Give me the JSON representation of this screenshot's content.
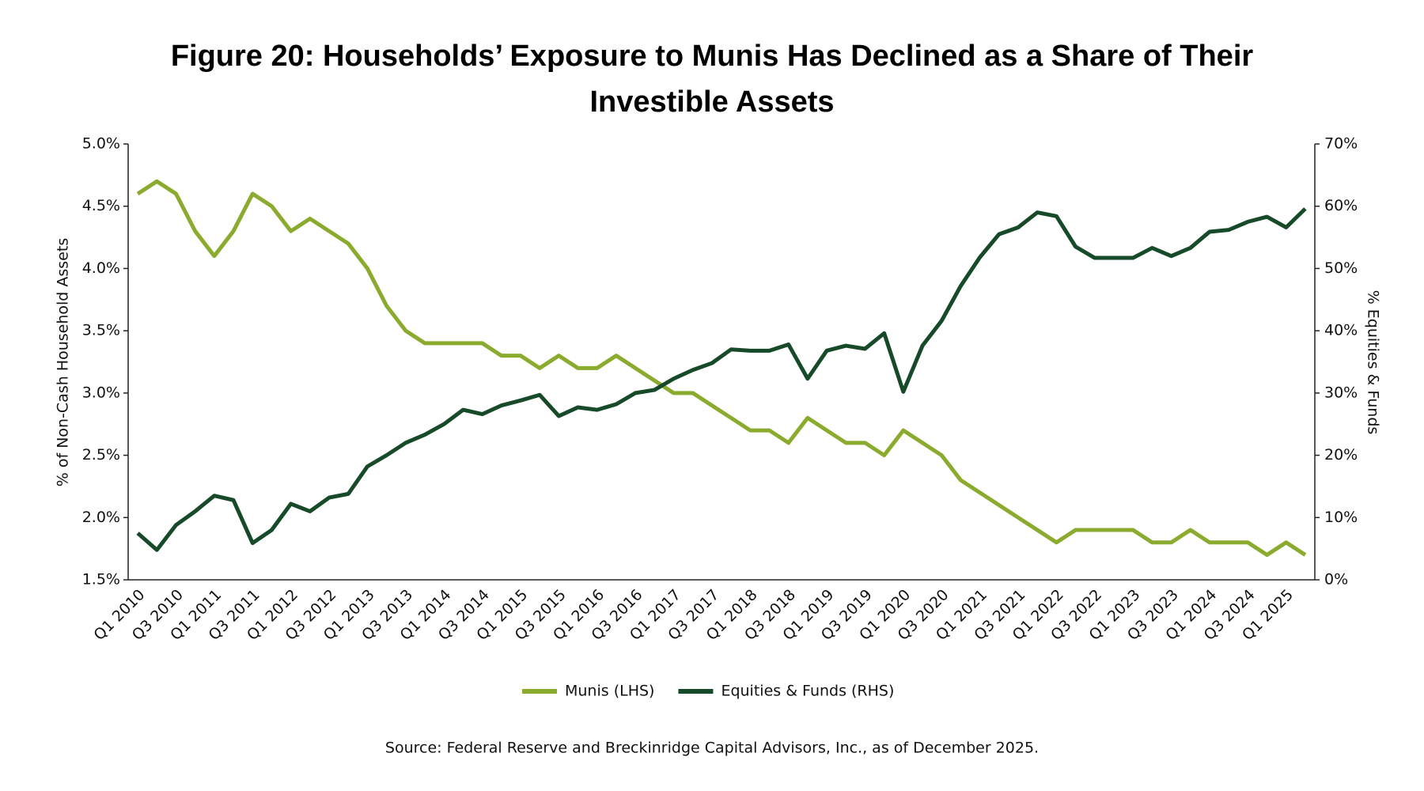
{
  "chart_data": {
    "type": "line",
    "title": "Figure 20: Households’ Exposure to Munis Has Declined as a Share of Their Investible Assets",
    "y_label": "% of Non-Cash Household Assets",
    "y2_label": "% Equities & Funds",
    "source": "Source: Federal Reserve and Breckinridge Capital Advisors, Inc., as of December 2025.",
    "categories": [
      "Q1 2010",
      null,
      "Q3 2010",
      null,
      "Q1 2011",
      null,
      "Q3 2011",
      null,
      "Q1 2012",
      null,
      "Q3 2012",
      null,
      "Q1 2013",
      null,
      "Q3 2013",
      null,
      "Q1 2014",
      null,
      "Q3 2014",
      null,
      "Q1 2015",
      null,
      "Q3 2015",
      null,
      "Q1 2016",
      null,
      "Q3 2016",
      null,
      "Q1 2017",
      null,
      "Q3 2017",
      null,
      "Q1 2018",
      null,
      "Q3 2018",
      null,
      "Q1 2019",
      null,
      "Q3 2019",
      null,
      "Q1 2020",
      null,
      "Q3 2020",
      null,
      "Q1 2021",
      null,
      "Q3 2021",
      null,
      "Q1 2022",
      null,
      "Q3 2022",
      null,
      "Q1 2023",
      null,
      "Q3 2023",
      null,
      "Q1 2024",
      null,
      "Q3 2024",
      null,
      "Q1 2025",
      null
    ],
    "series": [
      {
        "name": "Munis (LHS)",
        "color": "#8aab2e",
        "axis": "y",
        "values": [
          4.6,
          4.7,
          4.6,
          4.3,
          4.1,
          4.3,
          4.6,
          4.5,
          4.3,
          4.4,
          4.3,
          4.2,
          4.0,
          3.7,
          3.5,
          3.4,
          3.4,
          3.4,
          3.4,
          3.3,
          3.3,
          3.2,
          3.3,
          3.2,
          3.2,
          3.3,
          3.2,
          3.1,
          3.0,
          3.0,
          2.9,
          2.8,
          2.7,
          2.7,
          2.6,
          2.8,
          2.7,
          2.6,
          2.6,
          2.5,
          2.7,
          2.6,
          2.5,
          2.3,
          2.2,
          2.1,
          2.0,
          1.9,
          1.8,
          1.9,
          1.9,
          1.9,
          1.9,
          1.8,
          1.8,
          1.9,
          1.8,
          1.8,
          1.8,
          1.7,
          1.8,
          1.7
        ]
      },
      {
        "name": "Equities & Funds (RHS)",
        "color": "#174a29",
        "axis": "y2",
        "values": [
          7.5,
          4.8,
          8.8,
          11,
          13.5,
          12.8,
          5.9,
          8,
          12.2,
          11,
          13.2,
          13.8,
          18.2,
          20,
          22,
          23.3,
          25,
          27.3,
          26.6,
          28,
          28.8,
          29.7,
          26.3,
          27.7,
          27.3,
          28.2,
          30,
          30.5,
          32.3,
          33.7,
          34.8,
          37,
          36.8,
          36.8,
          37.8,
          32.3,
          36.8,
          37.6,
          37.1,
          39.6,
          30.2,
          37.6,
          41.6,
          47.2,
          51.8,
          55.5,
          56.6,
          59,
          58.4,
          53.5,
          51.7,
          51.7,
          51.7,
          53.3,
          52,
          53.3,
          55.9,
          56.2,
          57.5,
          58.3,
          56.6,
          59.6
        ]
      }
    ],
    "ylim": [
      1.5,
      5.0
    ],
    "yticks": [
      {
        "value": 1.5,
        "label": "1.5%"
      },
      {
        "value": 2.0,
        "label": "2.0%"
      },
      {
        "value": 2.5,
        "label": "2.5%"
      },
      {
        "value": 3.0,
        "label": "3.0%"
      },
      {
        "value": 3.5,
        "label": "3.5%"
      },
      {
        "value": 4.0,
        "label": "4.0%"
      },
      {
        "value": 4.5,
        "label": "4.5%"
      },
      {
        "value": 5.0,
        "label": "5.0%"
      }
    ],
    "y2lim": [
      0,
      70
    ],
    "y2ticks": [
      {
        "value": 0,
        "label": "0%"
      },
      {
        "value": 10,
        "label": "10%"
      },
      {
        "value": 20,
        "label": "20%"
      },
      {
        "value": 30,
        "label": "30%"
      },
      {
        "value": 40,
        "label": "40%"
      },
      {
        "value": 50,
        "label": "50%"
      },
      {
        "value": 60,
        "label": "60%"
      },
      {
        "value": 70,
        "label": "70%"
      }
    ],
    "grid": false,
    "legend": "bottom"
  }
}
